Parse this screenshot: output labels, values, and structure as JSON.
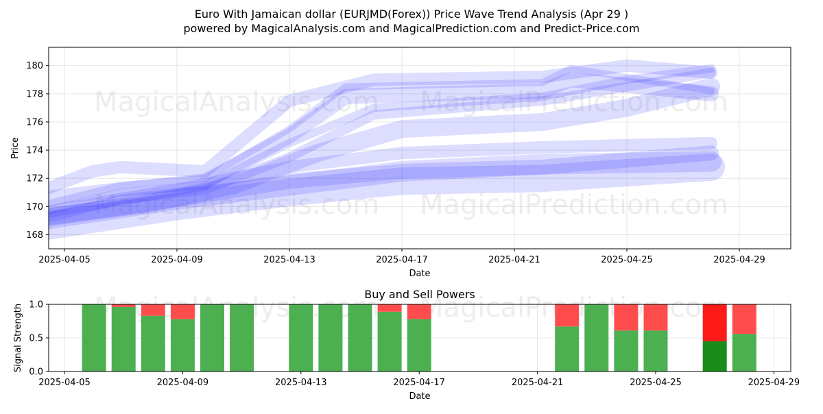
{
  "header": {
    "title": "Euro With Jamaican dollar (EURJMD(Forex)) Price Wave Trend Analysis (Apr 29 )",
    "subtitle": "powered by MagicalAnalysis.com and MagicalPrediction.com and Predict-Price.com"
  },
  "watermarks": [
    "MagicalAnalysis.com",
    "MagicalPrediction.com"
  ],
  "colors": {
    "wave": "#3333ff",
    "buy": "#4caf50",
    "sell": "#ff4d4d",
    "buy_strong": "#1a8c1a",
    "sell_strong": "#ff1a1a",
    "grid": "#e0e0e0"
  },
  "chart_data": [
    {
      "type": "line",
      "title": "",
      "xlabel": "Date",
      "ylabel": "Price",
      "x_ticks": [
        "2025-04-05",
        "2025-04-09",
        "2025-04-13",
        "2025-04-17",
        "2025-04-21",
        "2025-04-25",
        "2025-04-29"
      ],
      "y_ticks": [
        168,
        170,
        172,
        174,
        176,
        178,
        180
      ],
      "xlim": [
        "2025-04-03",
        "2025-04-29"
      ],
      "ylim": [
        167.0,
        181.3
      ],
      "grid": true,
      "bands": {
        "description_free": true,
        "upper_group": [
          {
            "points": [
              [
                "2025-04-04",
                169.5
              ],
              [
                "2025-04-07",
                171.0
              ],
              [
                "2025-04-10",
                171.5
              ],
              [
                "2025-04-13",
                174.5
              ],
              [
                "2025-04-16",
                177.0
              ],
              [
                "2025-04-22",
                177.8
              ],
              [
                "2025-04-25",
                179.0
              ],
              [
                "2025-04-28",
                179.8
              ]
            ],
            "width": 12
          },
          {
            "points": [
              [
                "2025-04-04",
                170.0
              ],
              [
                "2025-04-07",
                171.5
              ],
              [
                "2025-04-10",
                172.0
              ],
              [
                "2025-04-13",
                175.5
              ],
              [
                "2025-04-15",
                178.5
              ],
              [
                "2025-04-22",
                178.8
              ],
              [
                "2025-04-23",
                179.8
              ],
              [
                "2025-04-28",
                178.2
              ]
            ],
            "width": 10
          },
          {
            "points": [
              [
                "2025-04-04",
                169.0
              ],
              [
                "2025-04-07",
                170.5
              ],
              [
                "2025-04-10",
                171.2
              ],
              [
                "2025-04-13",
                173.5
              ],
              [
                "2025-04-16",
                176.5
              ],
              [
                "2025-04-22",
                177.5
              ],
              [
                "2025-04-25",
                178.5
              ],
              [
                "2025-04-28",
                179.5
              ]
            ],
            "width": 14
          },
          {
            "points": [
              [
                "2025-04-04",
                171.0
              ],
              [
                "2025-04-06",
                172.5
              ],
              [
                "2025-04-07",
                172.8
              ],
              [
                "2025-04-10",
                172.5
              ],
              [
                "2025-04-13",
                177.5
              ],
              [
                "2025-04-16",
                179.0
              ],
              [
                "2025-04-22",
                179.2
              ],
              [
                "2025-04-25",
                180.0
              ],
              [
                "2025-04-28",
                179.5
              ]
            ],
            "width": 18
          },
          {
            "points": [
              [
                "2025-04-04",
                170.5
              ],
              [
                "2025-04-07",
                171.2
              ],
              [
                "2025-04-10",
                171.8
              ],
              [
                "2025-04-13",
                175.0
              ],
              [
                "2025-04-15",
                177.8
              ],
              [
                "2025-04-18",
                178.0
              ],
              [
                "2025-04-22",
                178.2
              ],
              [
                "2025-04-23",
                179.0
              ],
              [
                "2025-04-28",
                178.0
              ]
            ],
            "width": 22
          },
          {
            "points": [
              [
                "2025-04-04",
                169.2
              ],
              [
                "2025-04-08",
                170.2
              ],
              [
                "2025-04-11",
                171.5
              ],
              [
                "2025-04-14",
                173.8
              ],
              [
                "2025-04-17",
                175.5
              ],
              [
                "2025-04-22",
                176.0
              ],
              [
                "2025-04-25",
                177.0
              ],
              [
                "2025-04-28",
                178.5
              ]
            ],
            "width": 26
          }
        ],
        "lower_group": [
          {
            "points": [
              [
                "2025-04-04",
                169.0
              ],
              [
                "2025-04-09",
                170.5
              ],
              [
                "2025-04-13",
                171.8
              ],
              [
                "2025-04-17",
                172.5
              ],
              [
                "2025-04-22",
                172.8
              ],
              [
                "2025-04-28",
                173.8
              ]
            ],
            "width": 22
          },
          {
            "points": [
              [
                "2025-04-04",
                169.5
              ],
              [
                "2025-04-09",
                171.2
              ],
              [
                "2025-04-13",
                172.8
              ],
              [
                "2025-04-17",
                173.8
              ],
              [
                "2025-04-22",
                174.2
              ],
              [
                "2025-04-28",
                174.5
              ]
            ],
            "width": 18
          },
          {
            "points": [
              [
                "2025-04-04",
                168.5
              ],
              [
                "2025-04-09",
                170.0
              ],
              [
                "2025-04-13",
                171.0
              ],
              [
                "2025-04-17",
                171.8
              ],
              [
                "2025-04-22",
                172.0
              ],
              [
                "2025-04-28",
                172.8
              ]
            ],
            "width": 40
          },
          {
            "points": [
              [
                "2025-04-04",
                169.0
              ],
              [
                "2025-04-09",
                170.5
              ],
              [
                "2025-04-13",
                171.5
              ],
              [
                "2025-04-17",
                172.5
              ],
              [
                "2025-04-22",
                173.0
              ],
              [
                "2025-04-28",
                173.2
              ]
            ],
            "width": 30
          }
        ]
      }
    },
    {
      "type": "bar",
      "title": "Buy and Sell Powers",
      "xlabel": "Date",
      "ylabel": "Signal Strength",
      "x_ticks": [
        "2025-04-05",
        "2025-04-09",
        "2025-04-13",
        "2025-04-17",
        "2025-04-21",
        "2025-04-25",
        "2025-04-29"
      ],
      "y_ticks": [
        "0.0",
        "0.5",
        "1.0"
      ],
      "ylim": [
        0,
        1
      ],
      "grid": true,
      "x": [
        "2025-04-06",
        "2025-04-07",
        "2025-04-08",
        "2025-04-09",
        "2025-04-10",
        "2025-04-11",
        "2025-04-13",
        "2025-04-14",
        "2025-04-15",
        "2025-04-16",
        "2025-04-17",
        "2025-04-22",
        "2025-04-23",
        "2025-04-24",
        "2025-04-25",
        "2025-04-27",
        "2025-04-28"
      ],
      "series": [
        {
          "name": "Buy",
          "values": [
            1.0,
            0.96,
            0.83,
            0.78,
            1.0,
            1.0,
            1.0,
            1.0,
            1.0,
            0.89,
            0.78,
            0.67,
            1.0,
            0.61,
            0.61,
            0.45,
            0.56
          ]
        },
        {
          "name": "Sell",
          "values": [
            0.0,
            0.04,
            0.17,
            0.22,
            0.0,
            0.0,
            0.0,
            0.0,
            0.0,
            0.11,
            0.22,
            0.33,
            0.0,
            0.39,
            0.39,
            0.55,
            0.44
          ]
        }
      ],
      "strong": [
        false,
        false,
        false,
        false,
        false,
        false,
        false,
        false,
        false,
        false,
        false,
        false,
        false,
        false,
        false,
        true,
        false
      ]
    }
  ]
}
